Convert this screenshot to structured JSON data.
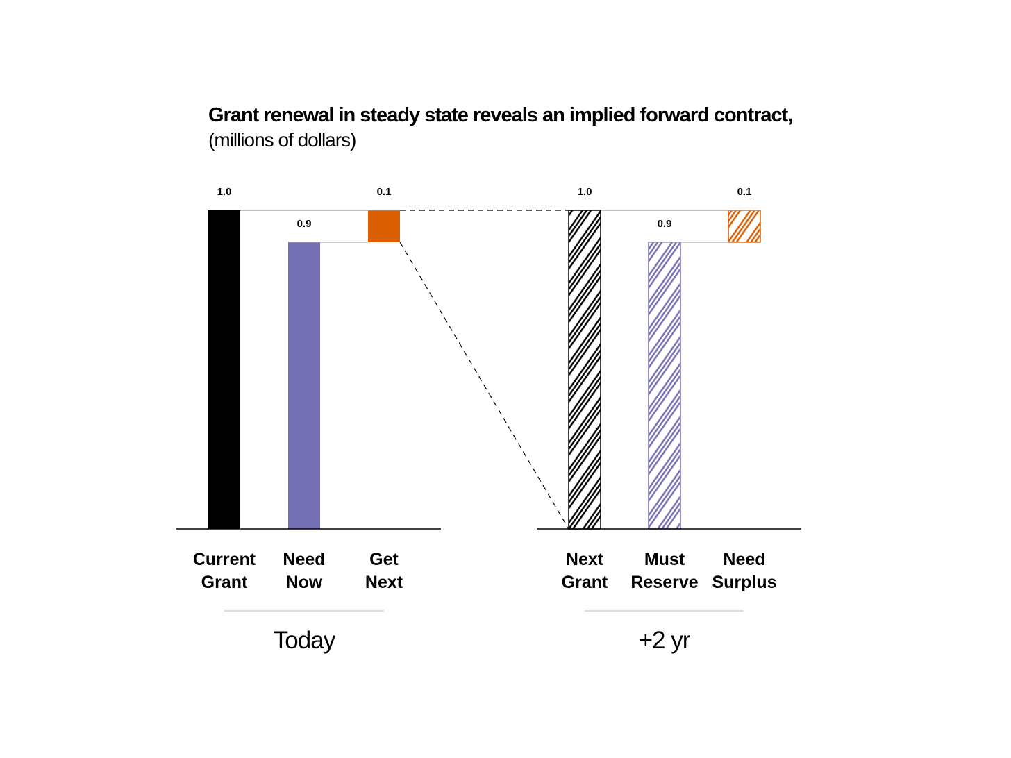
{
  "title": "Grant renewal in steady state reveals an implied forward contract,",
  "subtitle": "(millions of dollars)",
  "chart_data": [
    {
      "type": "bar",
      "group_label": "Today",
      "categories": [
        [
          "Current",
          "Grant"
        ],
        [
          "Need",
          "Now"
        ],
        [
          "Get",
          "Next"
        ]
      ],
      "values": [
        1.0,
        0.9,
        0.1
      ],
      "value_labels": [
        "1.0",
        "0.9",
        "0.1"
      ],
      "bases": [
        0,
        0,
        0.9
      ],
      "colors": [
        "#000000",
        "#7570b3",
        "#d95f02"
      ],
      "fill": "solid",
      "ylim": [
        0,
        1.0
      ]
    },
    {
      "type": "bar",
      "group_label": "+2 yr",
      "categories": [
        [
          "Next",
          "Grant"
        ],
        [
          "Must",
          "Reserve"
        ],
        [
          "Need",
          "Surplus"
        ]
      ],
      "values": [
        1.0,
        0.9,
        0.1
      ],
      "value_labels": [
        "1.0",
        "0.9",
        "0.1"
      ],
      "bases": [
        0,
        0,
        0.9
      ],
      "colors": [
        "#000000",
        "#7570b3",
        "#d95f02"
      ],
      "fill": "hatched",
      "ylim": [
        0,
        1.0
      ]
    }
  ]
}
